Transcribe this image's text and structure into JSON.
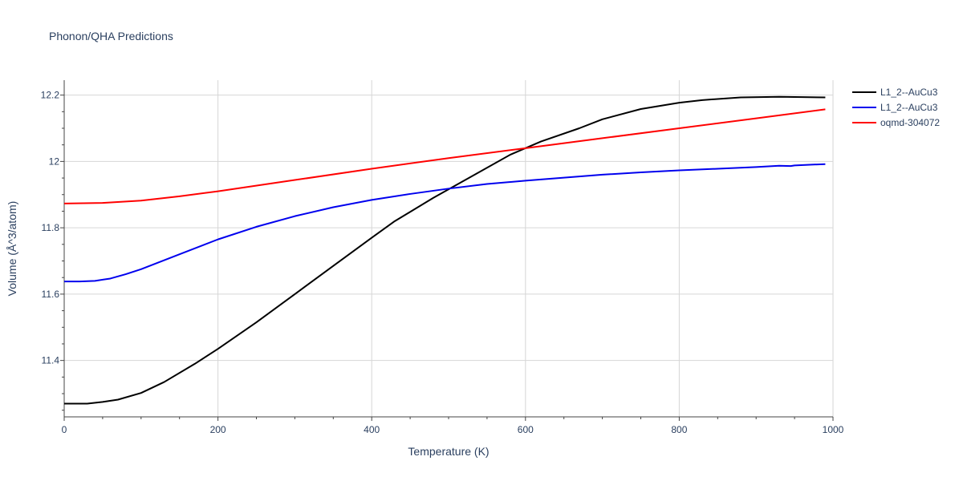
{
  "chart_data": {
    "type": "line",
    "title": "Phonon/QHA Predictions",
    "xlabel": "Temperature (K)",
    "ylabel": "Volume (Å^3/atom)",
    "xlim": [
      0,
      1000
    ],
    "ylim": [
      11.23,
      12.245
    ],
    "xticks": [
      0,
      200,
      400,
      600,
      800,
      1000
    ],
    "xtick_labels": [
      "0",
      "200",
      "400",
      "600",
      "800",
      "1000"
    ],
    "yticks": [
      11.4,
      11.6,
      11.8,
      12.0,
      12.2
    ],
    "ytick_labels": [
      "11.4",
      "11.6",
      "11.8",
      "12",
      "12.2"
    ],
    "grid": true,
    "legend_position": "top-right outside",
    "series": [
      {
        "name": "L1_2--AuCu3",
        "color": "#000000",
        "x": [
          0,
          30,
          50,
          70,
          100,
          130,
          170,
          200,
          250,
          300,
          350,
          400,
          430,
          480,
          530,
          580,
          620,
          670,
          700,
          750,
          800,
          830,
          880,
          930,
          960,
          990
        ],
        "y": [
          11.27,
          11.27,
          11.275,
          11.282,
          11.302,
          11.335,
          11.39,
          11.435,
          11.515,
          11.6,
          11.685,
          11.77,
          11.82,
          11.89,
          11.955,
          12.02,
          12.06,
          12.1,
          12.127,
          12.158,
          12.177,
          12.185,
          12.193,
          12.195,
          12.194,
          12.193
        ]
      },
      {
        "name": "L1_2--AuCu3",
        "color": "#0000ee",
        "x": [
          0,
          20,
          40,
          60,
          80,
          100,
          150,
          200,
          250,
          300,
          350,
          400,
          450,
          500,
          550,
          600,
          650,
          700,
          750,
          800,
          850,
          900,
          930,
          945,
          950,
          990
        ],
        "y": [
          11.638,
          11.638,
          11.64,
          11.647,
          11.66,
          11.675,
          11.72,
          11.765,
          11.803,
          11.835,
          11.862,
          11.884,
          11.902,
          11.918,
          11.932,
          11.942,
          11.951,
          11.96,
          11.967,
          11.973,
          11.978,
          11.983,
          11.987,
          11.986,
          11.988,
          11.992
        ]
      },
      {
        "name": "oqmd-304072",
        "color": "#ff0000",
        "x": [
          0,
          50,
          100,
          150,
          200,
          300,
          400,
          500,
          600,
          700,
          800,
          900,
          990
        ],
        "y": [
          11.873,
          11.875,
          11.882,
          11.895,
          11.91,
          11.944,
          11.978,
          12.01,
          12.04,
          12.07,
          12.1,
          12.13,
          12.157
        ]
      }
    ]
  }
}
